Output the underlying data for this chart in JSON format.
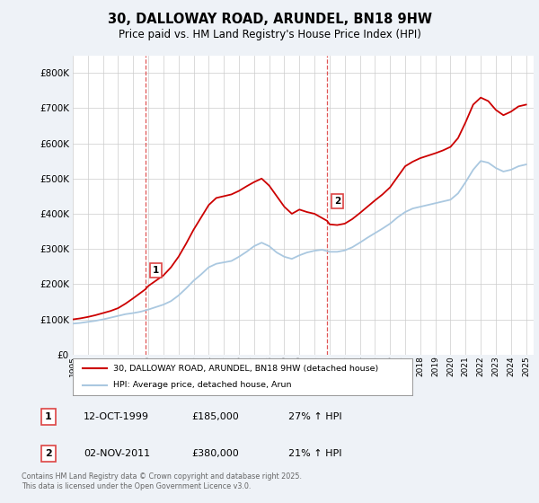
{
  "title": "30, DALLOWAY ROAD, ARUNDEL, BN18 9HW",
  "subtitle": "Price paid vs. HM Land Registry's House Price Index (HPI)",
  "property_label": "30, DALLOWAY ROAD, ARUNDEL, BN18 9HW (detached house)",
  "hpi_label": "HPI: Average price, detached house, Arun",
  "property_color": "#cc0000",
  "hpi_color": "#aac8e0",
  "vline_color": "#dd4444",
  "ylim": [
    0,
    850000
  ],
  "yticks": [
    0,
    100000,
    200000,
    300000,
    400000,
    500000,
    600000,
    700000,
    800000
  ],
  "xlim_min": 1995,
  "xlim_max": 2025.5,
  "marker1_x": 1999.79,
  "marker1_y": 185000,
  "marker1_label": "1",
  "marker1_date": "12-OCT-1999",
  "marker1_price": "£185,000",
  "marker1_hpi": "27% ↑ HPI",
  "marker2_x": 2011.83,
  "marker2_y": 380000,
  "marker2_label": "2",
  "marker2_date": "02-NOV-2011",
  "marker2_price": "£380,000",
  "marker2_hpi": "21% ↑ HPI",
  "footnote": "Contains HM Land Registry data © Crown copyright and database right 2025.\nThis data is licensed under the Open Government Licence v3.0.",
  "background_color": "#eef2f7",
  "plot_background": "#ffffff",
  "grid_color": "#cccccc",
  "hpi_years": [
    1995.0,
    1995.5,
    1996.0,
    1996.5,
    1997.0,
    1997.5,
    1998.0,
    1998.5,
    1999.0,
    1999.5,
    2000.0,
    2000.5,
    2001.0,
    2001.5,
    2002.0,
    2002.5,
    2003.0,
    2003.5,
    2004.0,
    2004.5,
    2005.0,
    2005.5,
    2006.0,
    2006.5,
    2007.0,
    2007.5,
    2008.0,
    2008.5,
    2009.0,
    2009.5,
    2010.0,
    2010.5,
    2011.0,
    2011.5,
    2012.0,
    2012.5,
    2013.0,
    2013.5,
    2014.0,
    2014.5,
    2015.0,
    2015.5,
    2016.0,
    2016.5,
    2017.0,
    2017.5,
    2018.0,
    2018.5,
    2019.0,
    2019.5,
    2020.0,
    2020.5,
    2021.0,
    2021.5,
    2022.0,
    2022.5,
    2023.0,
    2023.5,
    2024.0,
    2024.5,
    2025.0
  ],
  "hpi_values": [
    88000,
    90000,
    93000,
    96000,
    100000,
    105000,
    110000,
    115000,
    118000,
    122000,
    128000,
    135000,
    142000,
    152000,
    168000,
    188000,
    210000,
    228000,
    248000,
    258000,
    262000,
    266000,
    278000,
    292000,
    308000,
    318000,
    308000,
    290000,
    278000,
    272000,
    282000,
    290000,
    295000,
    298000,
    292000,
    292000,
    296000,
    305000,
    318000,
    332000,
    345000,
    358000,
    372000,
    390000,
    405000,
    415000,
    420000,
    425000,
    430000,
    435000,
    440000,
    458000,
    490000,
    525000,
    550000,
    545000,
    530000,
    520000,
    525000,
    535000,
    540000
  ],
  "prop_years": [
    1995.0,
    1995.5,
    1996.0,
    1996.5,
    1997.0,
    1997.5,
    1998.0,
    1998.5,
    1999.0,
    1999.79,
    2000.0,
    2000.5,
    2001.0,
    2001.5,
    2002.0,
    2002.5,
    2003.0,
    2003.5,
    2004.0,
    2004.5,
    2005.0,
    2005.5,
    2006.0,
    2006.5,
    2007.0,
    2007.5,
    2008.0,
    2008.5,
    2009.0,
    2009.5,
    2010.0,
    2010.5,
    2011.0,
    2011.83,
    2012.0,
    2012.5,
    2013.0,
    2013.5,
    2014.0,
    2014.5,
    2015.0,
    2015.5,
    2016.0,
    2016.5,
    2017.0,
    2017.5,
    2018.0,
    2018.5,
    2019.0,
    2019.5,
    2020.0,
    2020.5,
    2021.0,
    2021.5,
    2022.0,
    2022.5,
    2023.0,
    2023.5,
    2024.0,
    2024.5,
    2025.0
  ],
  "prop_values": [
    100000,
    103000,
    107000,
    112000,
    118000,
    124000,
    132000,
    145000,
    160000,
    185000,
    195000,
    210000,
    225000,
    248000,
    278000,
    315000,
    355000,
    390000,
    425000,
    445000,
    450000,
    455000,
    465000,
    478000,
    490000,
    500000,
    480000,
    450000,
    420000,
    400000,
    412000,
    405000,
    400000,
    380000,
    370000,
    368000,
    372000,
    385000,
    402000,
    420000,
    438000,
    455000,
    475000,
    505000,
    535000,
    548000,
    558000,
    565000,
    572000,
    580000,
    590000,
    615000,
    660000,
    710000,
    730000,
    720000,
    695000,
    680000,
    690000,
    705000,
    710000
  ]
}
